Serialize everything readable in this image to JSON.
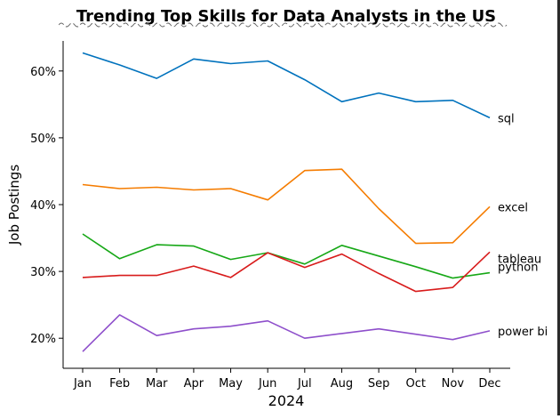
{
  "chart_data": {
    "type": "line",
    "title": "Trending Top Skills for Data Analysts in the US",
    "xlabel": "2024",
    "ylabel": "Job Postings",
    "categories": [
      "Jan",
      "Feb",
      "Mar",
      "Apr",
      "May",
      "Jun",
      "Jul",
      "Aug",
      "Sep",
      "Oct",
      "Nov",
      "Dec"
    ],
    "ylim": [
      15.5,
      64.5
    ],
    "yticks": [
      20,
      30,
      40,
      50,
      60
    ],
    "ytick_labels": [
      "20%",
      "30%",
      "40%",
      "50%",
      "60%"
    ],
    "grid": false,
    "legend": "inline labels at right end of each line",
    "series": [
      {
        "name": "sql",
        "color": "#0072BD",
        "values": [
          62.7,
          60.9,
          58.9,
          61.8,
          61.1,
          61.5,
          58.7,
          55.4,
          56.7,
          55.4,
          55.6,
          53.0
        ]
      },
      {
        "name": "excel",
        "color": "#F57C00",
        "values": [
          43.0,
          42.4,
          42.6,
          42.2,
          42.4,
          40.7,
          45.1,
          45.3,
          39.4,
          34.2,
          34.3,
          39.7
        ]
      },
      {
        "name": "python",
        "color": "#17A817",
        "values": [
          35.6,
          31.9,
          34.0,
          33.8,
          31.8,
          32.8,
          31.1,
          33.9,
          32.3,
          30.7,
          29.0,
          29.8
        ]
      },
      {
        "name": "tableau",
        "color": "#D81B1B",
        "values": [
          29.1,
          29.4,
          29.4,
          30.8,
          29.1,
          32.8,
          30.6,
          32.6,
          29.7,
          27.0,
          27.6,
          32.9
        ]
      },
      {
        "name": "power bi",
        "color": "#8E4FCB",
        "values": [
          18.0,
          23.5,
          20.4,
          21.4,
          21.8,
          22.6,
          20.0,
          20.7,
          21.4,
          20.6,
          19.8,
          21.1
        ]
      }
    ]
  }
}
